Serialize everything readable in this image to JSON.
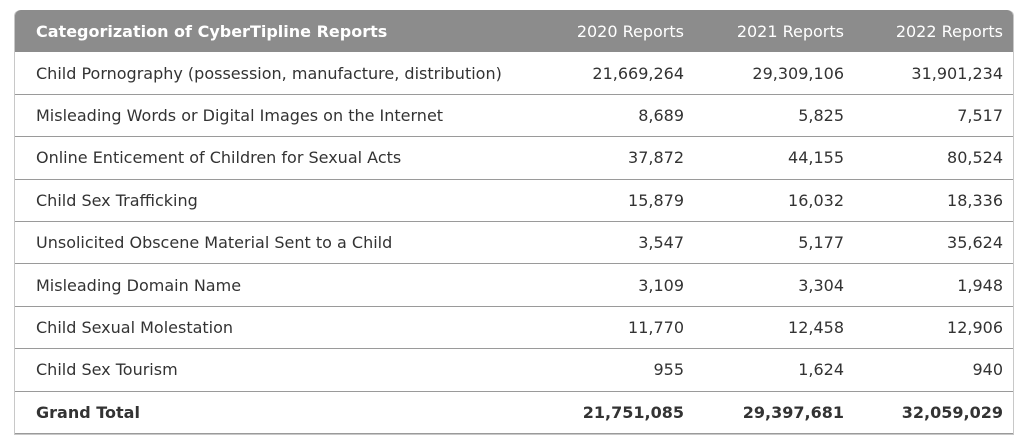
{
  "table": {
    "columns": [
      "Categorization of CyberTipline Reports",
      "2020 Reports",
      "2021 Reports",
      "2022 Reports"
    ],
    "rows": [
      [
        "Child Pornography (possession, manufacture, distribution)",
        "21,669,264",
        "29,309,106",
        "31,901,234"
      ],
      [
        "Misleading Words or Digital Images on the Internet",
        "8,689",
        "5,825",
        "7,517"
      ],
      [
        "Online Enticement of Children for Sexual Acts",
        "37,872",
        "44,155",
        "80,524"
      ],
      [
        "Child Sex Trafficking",
        "15,879",
        "16,032",
        "18,336"
      ],
      [
        "Unsolicited Obscene Material Sent to a Child",
        "3,547",
        "5,177",
        "35,624"
      ],
      [
        "Misleading Domain Name",
        "3,109",
        "3,304",
        "1,948"
      ],
      [
        "Child Sexual Molestation",
        "11,770",
        "12,458",
        "12,906"
      ],
      [
        "Child Sex Tourism",
        "955",
        "1,624",
        "940"
      ]
    ],
    "total": [
      "Grand Total",
      "21,751,085",
      "29,397,681",
      "32,059,029"
    ]
  }
}
